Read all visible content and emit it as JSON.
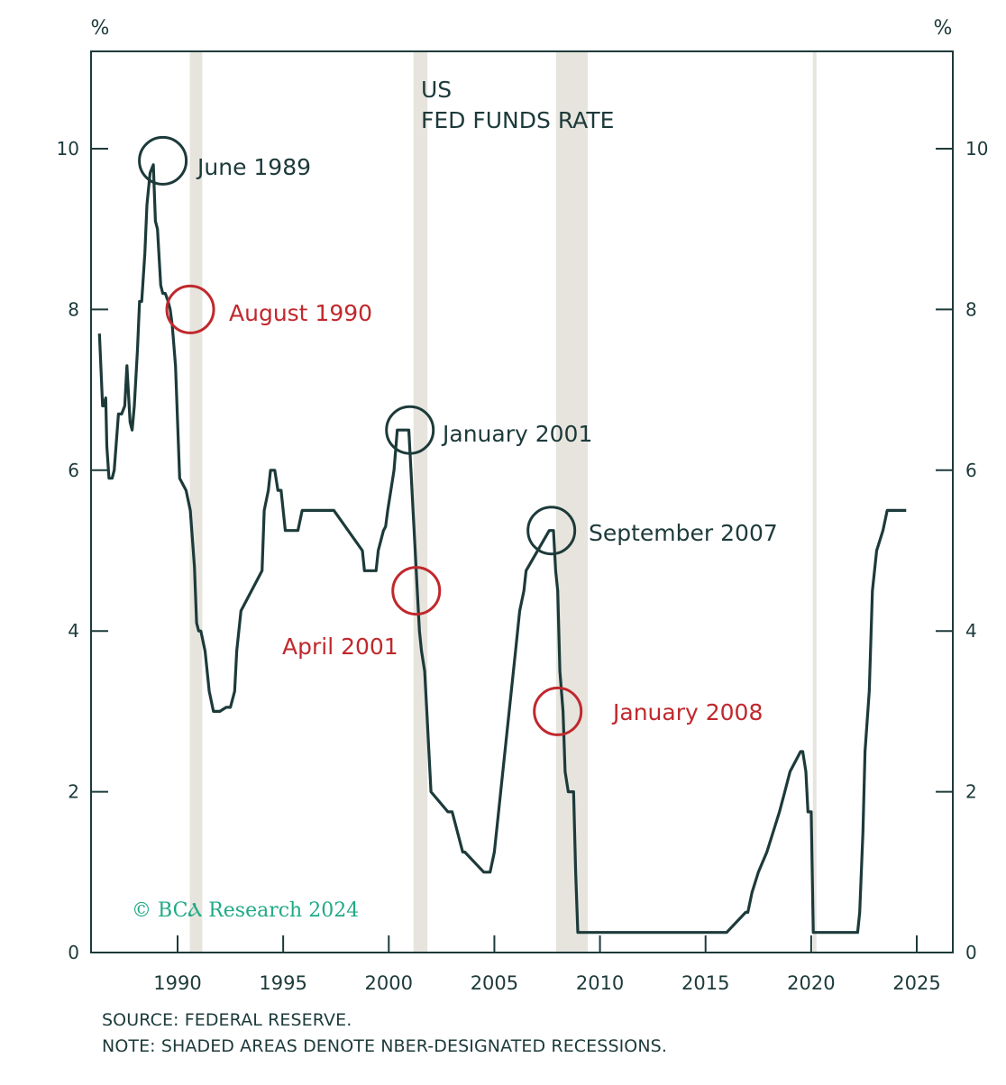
{
  "chart_data": {
    "type": "line",
    "title": [
      "US",
      "FED FUNDS RATE"
    ],
    "y_unit_left": "%",
    "y_unit_right": "%",
    "xlim": [
      1986.2,
      2025.9
    ],
    "ylim": [
      0,
      11.2
    ],
    "y_ticks": [
      0,
      2,
      4,
      6,
      8,
      10
    ],
    "x_ticks": [
      1990,
      1995,
      2000,
      2005,
      2010,
      2015,
      2020,
      2025
    ],
    "recessions": [
      [
        1990.58,
        1991.17
      ],
      [
        2001.17,
        2001.83
      ],
      [
        2007.92,
        2009.42
      ],
      [
        2020.08,
        2020.25
      ]
    ],
    "series": [
      {
        "x": [
          1986.3,
          1986.45,
          1986.5,
          1986.6,
          1986.65,
          1986.75,
          1986.8,
          1986.9,
          1987.0,
          1987.2,
          1987.35,
          1987.5,
          1987.6,
          1987.75,
          1987.85,
          1987.95,
          1988.1,
          1988.2,
          1988.3,
          1988.45,
          1988.55,
          1988.7,
          1988.85,
          1988.95,
          1989.05,
          1989.2,
          1989.3,
          1989.42,
          1989.55,
          1989.65,
          1989.75,
          1989.9,
          1990.0,
          1990.1,
          1990.4,
          1990.6,
          1990.8,
          1990.9,
          1991.0,
          1991.1,
          1991.3,
          1991.5,
          1991.7,
          1991.8,
          1991.95,
          1992.0,
          1992.3,
          1992.5,
          1992.7,
          1992.8,
          1993.0,
          1994.0,
          1994.1,
          1994.3,
          1994.4,
          1994.6,
          1994.75,
          1994.9,
          1995.1,
          1995.4,
          1995.7,
          1995.9,
          1996.1,
          1997.2,
          1997.4,
          1998.75,
          1998.85,
          1998.95,
          1999.4,
          1999.5,
          1999.75,
          1999.85,
          1999.95,
          2000.1,
          2000.25,
          2000.4,
          2000.5,
          2000.95,
          2001.05,
          2001.15,
          2001.25,
          2001.35,
          2001.45,
          2001.55,
          2001.7,
          2001.8,
          2001.9,
          2002.0,
          2002.8,
          2003.0,
          2003.5,
          2003.6,
          2004.5,
          2004.6,
          2004.8,
          2005.0,
          2005.2,
          2005.4,
          2005.6,
          2005.8,
          2006.0,
          2006.2,
          2006.4,
          2006.5,
          2007.6,
          2007.7,
          2007.8,
          2007.9,
          2008.0,
          2008.1,
          2008.25,
          2008.35,
          2008.5,
          2008.75,
          2008.85,
          2008.95,
          2015.9,
          2016.0,
          2016.9,
          2017.0,
          2017.2,
          2017.5,
          2017.9,
          2018.2,
          2018.5,
          2018.75,
          2019.0,
          2019.5,
          2019.6,
          2019.75,
          2019.85,
          2020.0,
          2020.1,
          2020.2,
          2022.2,
          2022.3,
          2022.45,
          2022.55,
          2022.75,
          2022.9,
          2023.1,
          2023.4,
          2023.6,
          2024.5
        ],
        "y": [
          7.7,
          6.8,
          6.8,
          6.9,
          6.3,
          5.9,
          5.9,
          5.9,
          6.0,
          6.7,
          6.7,
          6.8,
          7.3,
          6.6,
          6.5,
          6.8,
          7.5,
          8.1,
          8.1,
          8.7,
          9.3,
          9.7,
          9.8,
          9.1,
          9.0,
          8.3,
          8.2,
          8.2,
          8.1,
          8.0,
          7.8,
          7.3,
          6.6,
          5.9,
          5.75,
          5.5,
          4.8,
          4.1,
          4.0,
          4.0,
          3.75,
          3.25,
          3.0,
          3.0,
          3.0,
          3.0,
          3.05,
          3.05,
          3.25,
          3.75,
          4.25,
          4.75,
          5.5,
          5.75,
          6.0,
          6.0,
          5.75,
          5.75,
          5.25,
          5.25,
          5.25,
          5.5,
          5.5,
          5.5,
          5.5,
          5.0,
          4.75,
          4.75,
          4.75,
          5.0,
          5.25,
          5.3,
          5.5,
          5.75,
          6.0,
          6.5,
          6.5,
          6.5,
          6.0,
          5.5,
          5.0,
          4.5,
          4.0,
          3.75,
          3.5,
          3.0,
          2.5,
          2.0,
          1.75,
          1.75,
          1.25,
          1.25,
          1.0,
          1.0,
          1.0,
          1.25,
          1.75,
          2.25,
          2.75,
          3.25,
          3.75,
          4.25,
          4.5,
          4.75,
          5.25,
          5.25,
          5.25,
          4.75,
          4.5,
          3.5,
          3.0,
          2.25,
          2.0,
          2.0,
          1.0,
          0.25,
          0.25,
          0.25,
          0.5,
          0.5,
          0.75,
          1.0,
          1.25,
          1.5,
          1.75,
          2.0,
          2.25,
          2.5,
          2.5,
          2.25,
          1.75,
          1.75,
          0.25,
          0.25,
          0.25,
          0.5,
          1.5,
          2.5,
          3.25,
          4.5,
          5.0,
          5.25,
          5.5,
          5.5
        ]
      }
    ]
  },
  "annotations": [
    {
      "label": "June 1989",
      "color": "#1d3a3a",
      "x": 1989.3,
      "y": 9.85
    },
    {
      "label": "August 1990",
      "color": "#c0282d",
      "x": 1990.6,
      "y": 8.0
    },
    {
      "label": "January 2001",
      "color": "#1d3a3a",
      "x": 2001.0,
      "y": 6.5
    },
    {
      "label": "April 2001",
      "color": "#c0282d",
      "x": 2001.3,
      "y": 4.5
    },
    {
      "label": "September 2007",
      "color": "#1d3a3a",
      "x": 2007.7,
      "y": 5.25
    },
    {
      "label": "January 2008",
      "color": "#c0282d",
      "x": 2008.0,
      "y": 3.0
    }
  ],
  "credit": "© BCⲀ Research 2024",
  "footnotes": {
    "source": "SOURCE: FEDERAL RESERVE.",
    "note": "NOTE: SHADED AREAS DENOTE NBER-DESIGNATED RECESSIONS."
  },
  "colors": {
    "line": "#1d3a3a",
    "recession": "#e6e4dd",
    "dark_annotation": "#1d3a3a",
    "red_annotation": "#c0282d",
    "credit": "#1faa85"
  }
}
